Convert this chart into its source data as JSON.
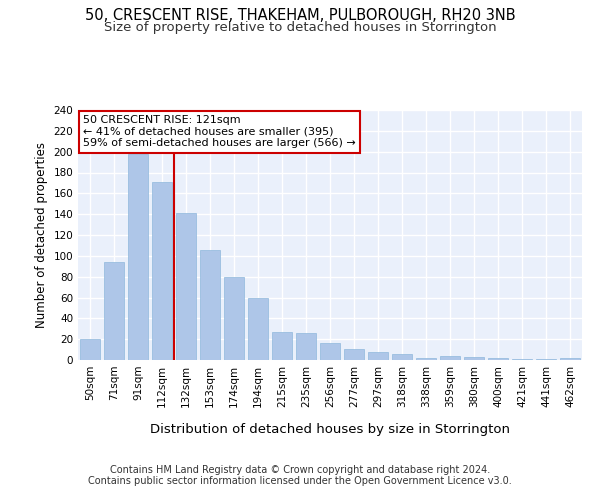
{
  "title1": "50, CRESCENT RISE, THAKEHAM, PULBOROUGH, RH20 3NB",
  "title2": "Size of property relative to detached houses in Storrington",
  "xlabel": "Distribution of detached houses by size in Storrington",
  "ylabel": "Number of detached properties",
  "categories": [
    "50sqm",
    "71sqm",
    "91sqm",
    "112sqm",
    "132sqm",
    "153sqm",
    "174sqm",
    "194sqm",
    "215sqm",
    "235sqm",
    "256sqm",
    "277sqm",
    "297sqm",
    "318sqm",
    "338sqm",
    "359sqm",
    "380sqm",
    "400sqm",
    "421sqm",
    "441sqm",
    "462sqm"
  ],
  "values": [
    20,
    94,
    198,
    171,
    141,
    106,
    80,
    60,
    27,
    26,
    16,
    11,
    8,
    6,
    2,
    4,
    3,
    2,
    1,
    1,
    2
  ],
  "bar_color": "#AEC6E8",
  "bar_edge_color": "#8FB8DC",
  "vline_x": 3.5,
  "vline_color": "#CC0000",
  "annotation_text": "50 CRESCENT RISE: 121sqm\n← 41% of detached houses are smaller (395)\n59% of semi-detached houses are larger (566) →",
  "annotation_box_color": "#CC0000",
  "ylim": [
    0,
    240
  ],
  "yticks": [
    0,
    20,
    40,
    60,
    80,
    100,
    120,
    140,
    160,
    180,
    200,
    220,
    240
  ],
  "footer_line1": "Contains HM Land Registry data © Crown copyright and database right 2024.",
  "footer_line2": "Contains public sector information licensed under the Open Government Licence v3.0.",
  "bg_color": "#EAF0FB",
  "grid_color": "#FFFFFF",
  "title1_fontsize": 10.5,
  "title2_fontsize": 9.5,
  "xlabel_fontsize": 9.5,
  "ylabel_fontsize": 8.5,
  "tick_fontsize": 7.5,
  "annot_fontsize": 8,
  "footer_fontsize": 7
}
